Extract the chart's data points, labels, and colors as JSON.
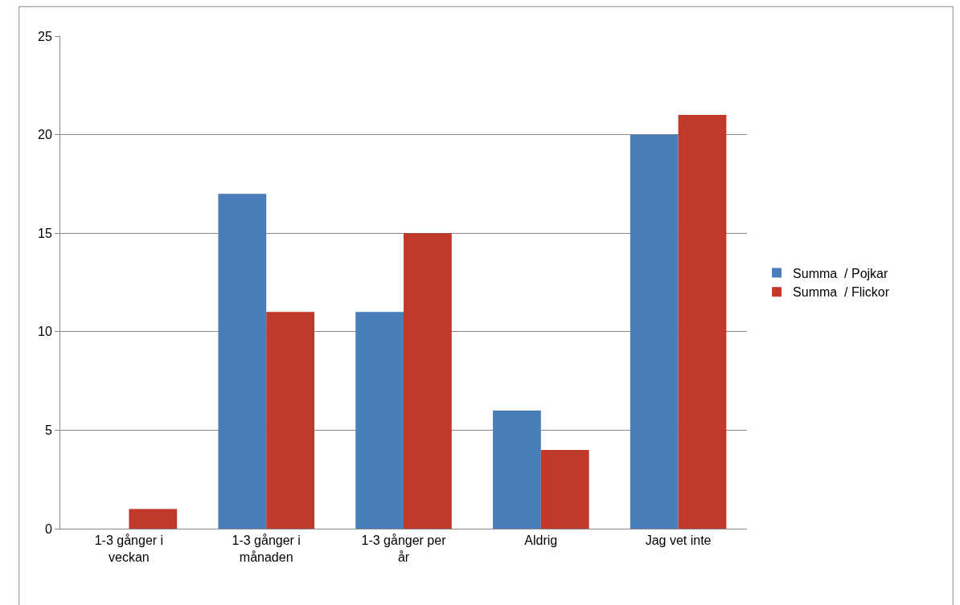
{
  "chart_data": {
    "type": "bar",
    "categories": [
      "1-3 gånger i veckan",
      "1-3 gånger i månaden",
      "1-3 gånger per år",
      "Aldrig",
      "Jag vet inte"
    ],
    "series": [
      {
        "name": "Summa  / Pojkar",
        "color": "#4a7ebb",
        "values": [
          0,
          17,
          11,
          6,
          20
        ]
      },
      {
        "name": "Summa  / Flickor",
        "color": "#c0392b",
        "values": [
          1,
          11,
          15,
          4,
          21
        ]
      }
    ],
    "ylim": [
      0,
      25
    ],
    "yticks": [
      0,
      5,
      10,
      15,
      20,
      25
    ],
    "grid": "y",
    "legend": "right"
  }
}
